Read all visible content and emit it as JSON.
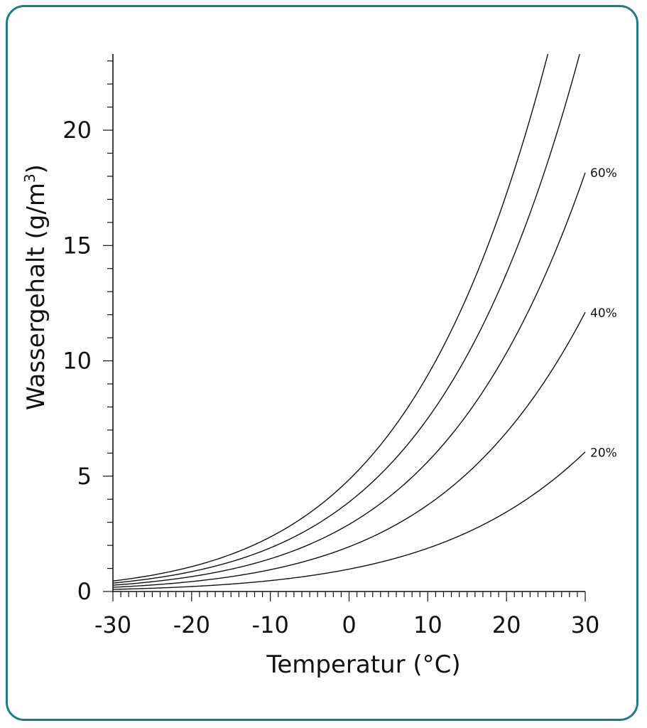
{
  "chart_data": {
    "type": "line",
    "title": "",
    "xlabel": "Temperatur (°C)",
    "ylabel_main": "Wassergehalt (g/m",
    "ylabel_sup": "3",
    "ylabel_close": ")",
    "xlim": [
      -30,
      30
    ],
    "ylim": [
      0,
      23.3
    ],
    "x_ticks": [
      -30,
      -20,
      -10,
      0,
      10,
      20,
      30
    ],
    "x_tick_labels": [
      "-30",
      "-20",
      "-10",
      "0",
      "10",
      "20",
      "30"
    ],
    "y_ticks": [
      0,
      5,
      10,
      15,
      20
    ],
    "y_tick_labels": [
      "0",
      "5",
      "10",
      "15",
      "20"
    ],
    "grid": false,
    "series": [
      {
        "name": "20%",
        "relative_humidity": 0.2,
        "labeled": true,
        "x": [
          -30,
          -20,
          -10,
          0,
          10,
          20,
          30
        ],
        "y": [
          0.09,
          0.18,
          0.43,
          0.97,
          1.88,
          3.46,
          6.06
        ]
      },
      {
        "name": "40%",
        "relative_humidity": 0.4,
        "labeled": true,
        "x": [
          -30,
          -20,
          -10,
          0,
          10,
          20,
          30
        ],
        "y": [
          0.18,
          0.35,
          0.86,
          1.94,
          3.76,
          6.92,
          12.12
        ]
      },
      {
        "name": "60%",
        "relative_humidity": 0.6,
        "labeled": true,
        "x": [
          -30,
          -20,
          -10,
          0,
          10,
          20,
          30
        ],
        "y": [
          0.27,
          0.53,
          1.29,
          2.91,
          5.64,
          10.38,
          18.18
        ]
      },
      {
        "name": "",
        "relative_humidity": 0.8,
        "labeled": false,
        "x": [
          -30,
          -20,
          -10,
          0,
          10,
          20,
          29.3
        ],
        "y": [
          0.36,
          0.7,
          1.72,
          3.88,
          7.52,
          13.84,
          23.3
        ]
      },
      {
        "name": "",
        "relative_humidity": 1.0,
        "labeled": false,
        "x": [
          -30,
          -20,
          -10,
          0,
          10,
          20,
          25.3
        ],
        "y": [
          0.45,
          0.88,
          2.15,
          4.85,
          9.4,
          17.3,
          23.3
        ]
      }
    ]
  }
}
